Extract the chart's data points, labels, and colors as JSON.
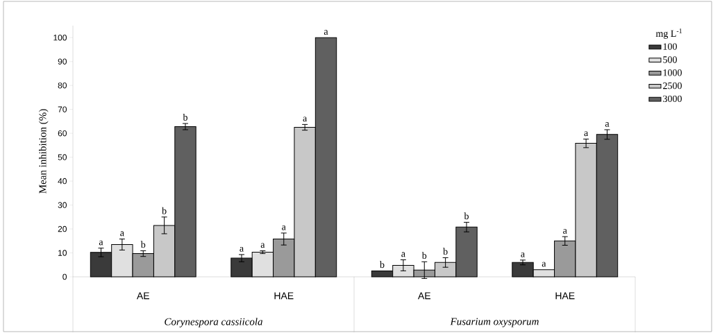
{
  "chart_data": {
    "type": "bar",
    "ylabel": "Mean inhibition (%)",
    "legend_title": "mg L$^{-1}$",
    "categories": [
      "AE",
      "HAE",
      "AE",
      "HAE"
    ],
    "annotations": [
      "*Corynespora cassiicola*",
      "*Fusarium oxysporum*"
    ],
    "ylim": [
      0,
      105
    ],
    "yticks": [
      0,
      10,
      20,
      30,
      40,
      50,
      60,
      70,
      80,
      90,
      100
    ],
    "legend": "top right",
    "series": [
      {
        "name": "100",
        "color": "#3a3a3a",
        "values": [
          10.2,
          7.8,
          2.5,
          6
        ],
        "errors": [
          1.8,
          1.5,
          null,
          1
        ],
        "value_labels": [
          "a",
          "a",
          "b",
          "a"
        ]
      },
      {
        "name": "500",
        "color": "#e0e0e0",
        "values": [
          13.5,
          10.3,
          4.8,
          3
        ],
        "errors": [
          2.3,
          0.6,
          2.3,
          null
        ],
        "value_labels": [
          "a",
          "a",
          "a",
          "a"
        ]
      },
      {
        "name": "1000",
        "color": "#9a9a9a",
        "values": [
          9.7,
          15.8,
          2.8,
          15
        ],
        "errors": [
          1.2,
          2.5,
          3.5,
          1.8
        ],
        "value_labels": [
          "b",
          "a",
          "b",
          "a"
        ]
      },
      {
        "name": "2500",
        "color": "#c8c8c8",
        "values": [
          21.5,
          62.5,
          6,
          55.8
        ],
        "errors": [
          3.5,
          1.2,
          2,
          1.8
        ],
        "value_labels": [
          "b",
          "a",
          "b",
          "a"
        ]
      },
      {
        "name": "3000",
        "color": "#606060",
        "values": [
          62.8,
          100,
          20.8,
          59.5
        ],
        "errors": [
          1.3,
          null,
          2,
          2
        ],
        "value_labels": [
          "b",
          "a",
          "b",
          "a"
        ]
      }
    ]
  }
}
